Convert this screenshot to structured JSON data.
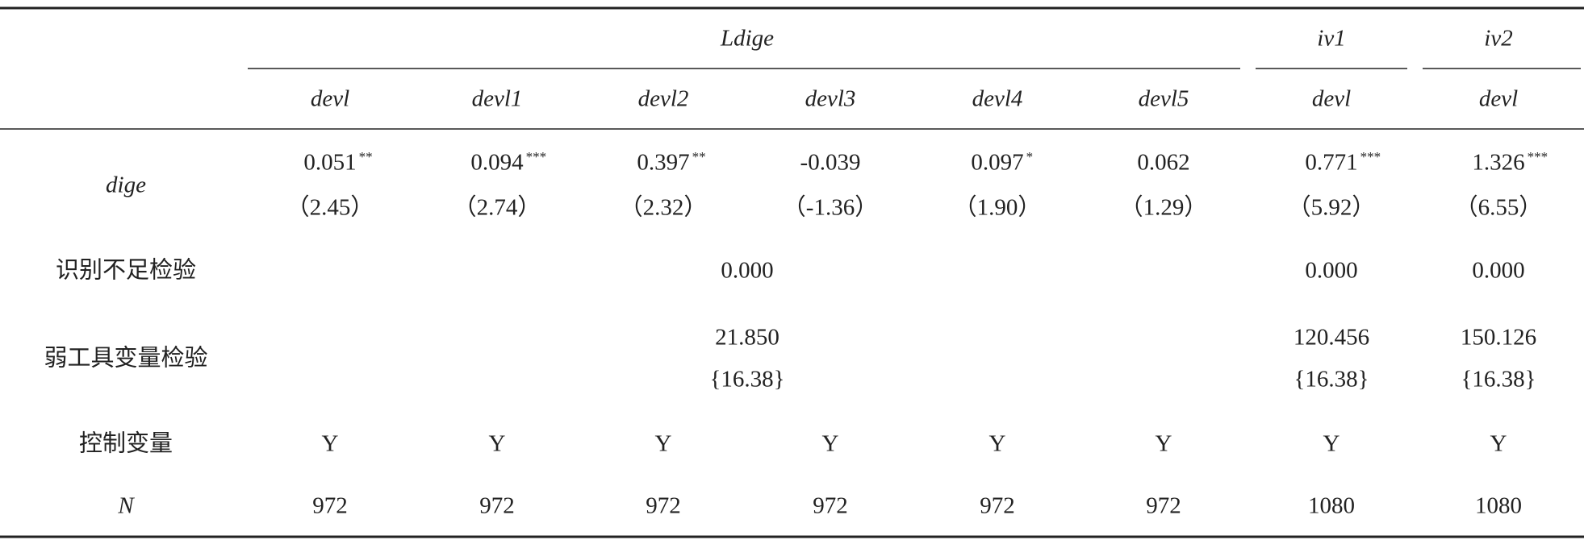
{
  "header": {
    "groups": [
      "Ldige",
      "iv1",
      "iv2"
    ],
    "columns": [
      "devl",
      "devl1",
      "devl2",
      "devl3",
      "devl4",
      "devl5",
      "devl",
      "devl"
    ]
  },
  "rows": [
    {
      "label": "dige",
      "cells": [
        {
          "coef": "0.051",
          "stars": "**",
          "t": "（2.45）"
        },
        {
          "coef": "0.094",
          "stars": "***",
          "t": "（2.74）"
        },
        {
          "coef": "0.397",
          "stars": "**",
          "t": "（2.32）"
        },
        {
          "coef": "-0.039",
          "t": "（-1.36）"
        },
        {
          "coef": "0.097",
          "stars": "*",
          "t": "（1.90）"
        },
        {
          "coef": "0.062",
          "t": "（1.29）"
        },
        {
          "coef": "0.771",
          "stars": "***",
          "t": "（5.92）"
        },
        {
          "coef": "1.326",
          "stars": "***",
          "t": "（6.55）"
        }
      ]
    },
    {
      "label": "识别不足检验",
      "cells": [
        "0.000",
        "0.000",
        "0.000"
      ]
    },
    {
      "label": "弱工具变量检验",
      "cells": [
        {
          "stat": "21.850",
          "critical": "{16.38}"
        },
        {
          "stat": "120.456",
          "critical": "{16.38}"
        },
        {
          "stat": "150.126",
          "critical": "{16.38}"
        }
      ]
    },
    {
      "label": "控制变量",
      "cells": [
        "Y",
        "Y",
        "Y",
        "Y",
        "Y",
        "Y",
        "Y",
        "Y"
      ]
    },
    {
      "label": "N",
      "cells": [
        972,
        972,
        972,
        972,
        972,
        972,
        1080,
        1080
      ]
    }
  ]
}
